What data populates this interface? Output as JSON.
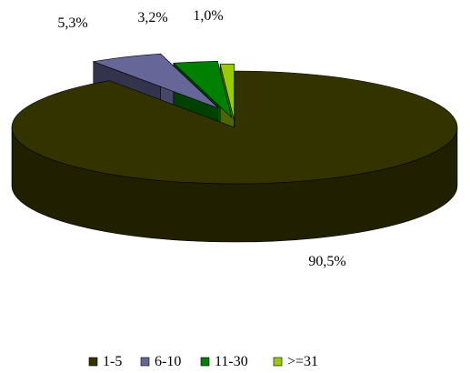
{
  "chart_data": {
    "type": "pie",
    "style": "3d-exploded",
    "slices": [
      {
        "label": "1-5",
        "value": 90.5,
        "display": "90,5%",
        "color": "#333300"
      },
      {
        "label": "6-10",
        "value": 5.3,
        "display": "5,3%",
        "color": "#666699"
      },
      {
        "label": "11-30",
        "value": 3.2,
        "display": "3,2%",
        "color": "#008000"
      },
      {
        "label": ">=31",
        "value": 1.0,
        "display": "1,0%",
        "color": "#99cc00"
      }
    ],
    "legend_position": "bottom",
    "title": ""
  }
}
